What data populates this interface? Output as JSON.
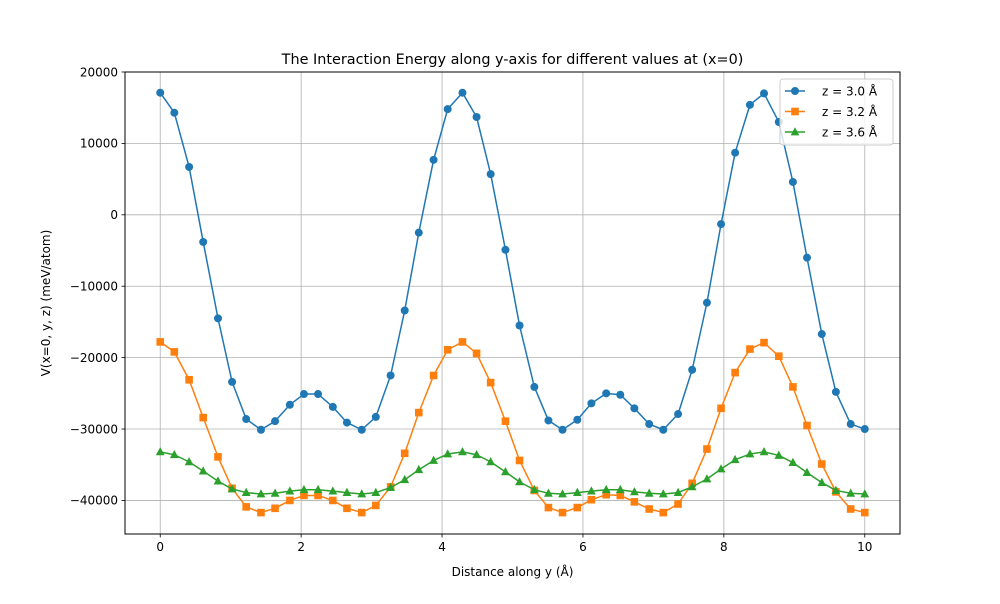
{
  "chart_data": {
    "type": "line",
    "title": "The Interaction Energy along y-axis for different values at (x=0)",
    "xlabel": "Distance along y (Å)",
    "ylabel": "V(x=0, y, z) (meV/atom)",
    "xlim": [
      -0.5,
      10.5
    ],
    "ylim": [
      -44700,
      20000
    ],
    "xticks": [
      0,
      2,
      4,
      6,
      8,
      10
    ],
    "yticks": [
      -40000,
      -30000,
      -20000,
      -10000,
      0,
      10000,
      20000
    ],
    "grid": true,
    "legend_position": "top-right",
    "x": [
      0.0,
      0.2,
      0.41,
      0.61,
      0.82,
      1.02,
      1.22,
      1.43,
      1.63,
      1.84,
      2.04,
      2.24,
      2.45,
      2.65,
      2.86,
      3.06,
      3.27,
      3.47,
      3.67,
      3.88,
      4.08,
      4.29,
      4.49,
      4.69,
      4.9,
      5.1,
      5.31,
      5.51,
      5.71,
      5.92,
      6.12,
      6.33,
      6.53,
      6.73,
      6.94,
      7.14,
      7.35,
      7.55,
      7.76,
      7.96,
      8.16,
      8.37,
      8.57,
      8.78,
      8.98,
      9.18,
      9.39,
      9.59,
      9.8,
      10.0
    ],
    "series": [
      {
        "name": "z = 3.0 Å",
        "color": "#1f77b4",
        "marker": "circle",
        "values": [
          17100,
          14300,
          6700,
          -3800,
          -14500,
          -23400,
          -28600,
          -30100,
          -28900,
          -26600,
          -25100,
          -25100,
          -26900,
          -29100,
          -30100,
          -28300,
          -22500,
          -13400,
          -2500,
          7700,
          14800,
          17100,
          13700,
          5700,
          -4900,
          -15500,
          -24100,
          -28800,
          -30100,
          -28700,
          -26400,
          -25000,
          -25200,
          -27100,
          -29300,
          -30100,
          -27900,
          -21700,
          -12300,
          -1300,
          8700,
          15400,
          17000,
          13000,
          4600,
          -6000,
          -16700,
          -24800,
          -29300,
          -30000
        ]
      },
      {
        "name": "z = 3.2 Å",
        "color": "#ff7f0e",
        "marker": "square",
        "values": [
          -17800,
          -19200,
          -23100,
          -28400,
          -33900,
          -38300,
          -40900,
          -41700,
          -41100,
          -40000,
          -39300,
          -39300,
          -40000,
          -41100,
          -41700,
          -40700,
          -38100,
          -33400,
          -27700,
          -22500,
          -18900,
          -17800,
          -19400,
          -23500,
          -28900,
          -34400,
          -38600,
          -41000,
          -41700,
          -41000,
          -39900,
          -39200,
          -39300,
          -40200,
          -41200,
          -41700,
          -40500,
          -37600,
          -32800,
          -27100,
          -22100,
          -18800,
          -17900,
          -19800,
          -24100,
          -29500,
          -34900,
          -38800,
          -41200,
          -41700
        ]
      },
      {
        "name": "z = 3.6 Å",
        "color": "#2ca02c",
        "marker": "triangle",
        "values": [
          -33200,
          -33600,
          -34600,
          -35900,
          -37300,
          -38400,
          -38900,
          -39100,
          -39000,
          -38700,
          -38500,
          -38500,
          -38700,
          -38900,
          -39100,
          -38900,
          -38200,
          -37100,
          -35700,
          -34400,
          -33500,
          -33200,
          -33600,
          -34600,
          -36000,
          -37400,
          -38500,
          -39000,
          -39100,
          -38900,
          -38700,
          -38500,
          -38500,
          -38800,
          -39000,
          -39100,
          -38900,
          -38100,
          -37000,
          -35600,
          -34300,
          -33500,
          -33200,
          -33700,
          -34700,
          -36100,
          -37500,
          -38600,
          -39000,
          -39100
        ]
      }
    ]
  }
}
